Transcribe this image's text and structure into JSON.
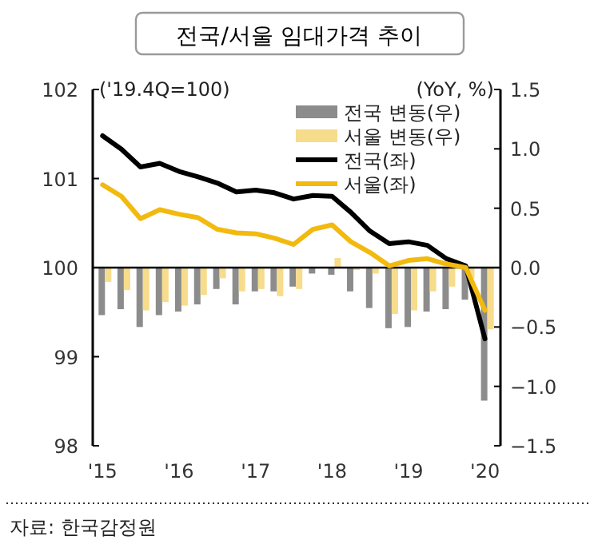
{
  "chart_data": {
    "type": "line",
    "title": "전국/서울 임대가격 추이",
    "annotations": [
      "('19.4Q=100)",
      "(YoY, %)",
      "자료: 한국감정원"
    ],
    "x": [
      "2015-01",
      "2015-04",
      "2015-07",
      "2015-10",
      "2016-01",
      "2016-04",
      "2016-07",
      "2016-10",
      "2017-01",
      "2017-04",
      "2017-07",
      "2017-10",
      "2018-01",
      "2018-04",
      "2018-07",
      "2018-10",
      "2019-01",
      "2019-04",
      "2019-07",
      "2019-10",
      "2020-01"
    ],
    "series": [
      {
        "name": "전국 변동(우)",
        "type": "bar",
        "axis": "y2",
        "color": "#8c8c8c",
        "values": [
          -0.4,
          -0.35,
          -0.5,
          -0.4,
          -0.37,
          -0.31,
          -0.18,
          -0.31,
          -0.2,
          -0.2,
          -0.16,
          -0.05,
          -0.06,
          -0.2,
          -0.34,
          -0.51,
          -0.5,
          -0.37,
          -0.35,
          -0.27,
          -1.12
        ]
      },
      {
        "name": "서울 변동(우)",
        "type": "bar",
        "axis": "y2",
        "color": "#f7dc8c",
        "values": [
          -0.12,
          -0.19,
          -0.36,
          -0.29,
          -0.32,
          -0.23,
          -0.09,
          -0.2,
          -0.18,
          -0.24,
          -0.18,
          null,
          0.08,
          -0.02,
          -0.05,
          -0.39,
          -0.36,
          -0.2,
          -0.16,
          -0.09,
          -0.52
        ]
      },
      {
        "name": "전국(좌)",
        "color": "#000000",
        "values": [
          101.48,
          101.33,
          101.13,
          101.17,
          101.08,
          101.02,
          100.95,
          100.85,
          100.87,
          100.84,
          100.77,
          100.81,
          100.8,
          100.62,
          100.41,
          100.27,
          100.29,
          100.25,
          100.1,
          100.02,
          99.2
        ]
      },
      {
        "name": "서울(좌)",
        "color": "#f2b90f",
        "values": [
          100.93,
          100.8,
          100.55,
          100.65,
          100.6,
          100.56,
          100.43,
          100.39,
          100.38,
          100.33,
          100.26,
          100.43,
          100.48,
          100.29,
          100.17,
          100.02,
          100.08,
          100.1,
          100.04,
          100.0,
          99.52
        ]
      }
    ],
    "xlim": [
      "2014-11-15",
      "2020-03-15"
    ],
    "xticks": [
      {
        "value": "2015-01",
        "label": "'15"
      },
      {
        "value": "2016-01",
        "label": "'16"
      },
      {
        "value": "2017-01",
        "label": "'17"
      },
      {
        "value": "2018-01",
        "label": "'18"
      },
      {
        "value": "2019-01",
        "label": "'19"
      },
      {
        "value": "2020-01",
        "label": "'20"
      }
    ],
    "ylim": [
      98,
      102
    ],
    "yticks": [
      98,
      99,
      100,
      101,
      102
    ],
    "y2lim": [
      -1.5,
      1.5
    ],
    "y2ticks": [
      {
        "value": -1.5,
        "label": "−1.5"
      },
      {
        "value": -1,
        "label": "−1.0"
      },
      {
        "value": -0.5,
        "label": "−0.5"
      },
      {
        "value": 0,
        "label": "0.0"
      },
      {
        "value": 0.5,
        "label": "0.5"
      },
      {
        "value": 1,
        "label": "1.0"
      },
      {
        "value": 1.5,
        "label": "1.5"
      }
    ],
    "ref_lines": [
      {
        "axis": "y",
        "value": 100,
        "color": "#000000"
      }
    ],
    "grid": false,
    "legend": "top right"
  }
}
